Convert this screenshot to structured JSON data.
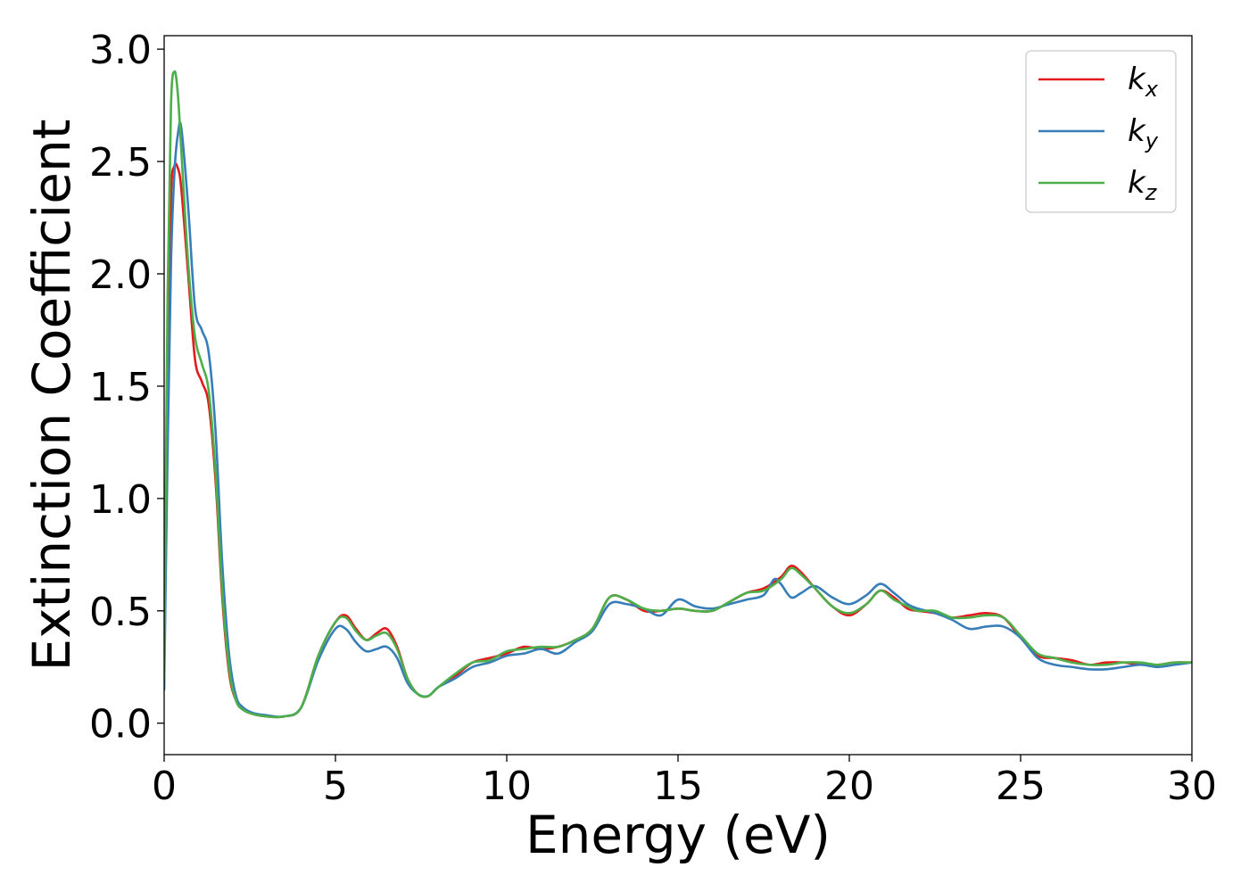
{
  "chart_data": {
    "type": "line",
    "xlabel": "Energy (eV)",
    "ylabel": "Extinction Coefficient",
    "xlim": [
      0,
      30
    ],
    "ylim": [
      -0.14,
      3.06
    ],
    "xticks": [
      "0",
      "5",
      "10",
      "15",
      "20",
      "25",
      "30"
    ],
    "yticks": [
      "0.0",
      "0.5",
      "1.0",
      "1.5",
      "2.0",
      "2.5",
      "3.0"
    ],
    "grid": false,
    "legend_position": "top-right",
    "series": [
      {
        "name": "k",
        "subscript": "x",
        "color": "#e41a1c",
        "x": [
          0,
          0.1,
          0.2,
          0.3,
          0.4,
          0.5,
          0.7,
          0.9,
          1.1,
          1.3,
          1.5,
          1.7,
          1.9,
          2.1,
          2.3,
          2.6,
          3.0,
          3.5,
          4.0,
          4.5,
          5.0,
          5.3,
          5.6,
          5.9,
          6.2,
          6.5,
          6.8,
          7.1,
          7.4,
          7.7,
          8.0,
          8.5,
          9.0,
          9.5,
          10.0,
          10.5,
          11.0,
          11.5,
          12.0,
          12.5,
          13.0,
          13.5,
          14.0,
          14.5,
          15.0,
          15.5,
          16.0,
          16.5,
          17.0,
          17.5,
          18.0,
          18.3,
          18.6,
          19.0,
          19.5,
          20.0,
          20.5,
          20.9,
          21.3,
          21.7,
          22.0,
          22.5,
          23.0,
          23.5,
          24.0,
          24.5,
          25.0,
          25.5,
          26.0,
          26.5,
          27.0,
          27.5,
          28.0,
          28.5,
          29.0,
          29.5,
          30.0
        ],
        "values": [
          0.2,
          1.6,
          2.35,
          2.48,
          2.47,
          2.38,
          2.0,
          1.62,
          1.52,
          1.42,
          1.08,
          0.55,
          0.22,
          0.1,
          0.06,
          0.04,
          0.03,
          0.03,
          0.07,
          0.3,
          0.45,
          0.48,
          0.42,
          0.37,
          0.4,
          0.42,
          0.34,
          0.2,
          0.13,
          0.12,
          0.16,
          0.21,
          0.27,
          0.29,
          0.31,
          0.34,
          0.33,
          0.34,
          0.37,
          0.42,
          0.56,
          0.55,
          0.5,
          0.5,
          0.51,
          0.5,
          0.5,
          0.54,
          0.58,
          0.6,
          0.65,
          0.7,
          0.67,
          0.6,
          0.52,
          0.48,
          0.53,
          0.59,
          0.56,
          0.51,
          0.5,
          0.49,
          0.47,
          0.48,
          0.49,
          0.47,
          0.38,
          0.3,
          0.29,
          0.28,
          0.26,
          0.27,
          0.27,
          0.26,
          0.26,
          0.27,
          0.27
        ]
      },
      {
        "name": "k",
        "subscript": "y",
        "color": "#377eb8",
        "x": [
          0,
          0.1,
          0.2,
          0.3,
          0.4,
          0.5,
          0.7,
          0.9,
          1.1,
          1.3,
          1.5,
          1.7,
          1.9,
          2.1,
          2.3,
          2.6,
          3.0,
          3.5,
          4.0,
          4.5,
          5.0,
          5.3,
          5.6,
          5.9,
          6.2,
          6.5,
          6.8,
          7.1,
          7.4,
          7.7,
          8.0,
          8.5,
          9.0,
          9.5,
          10.0,
          10.5,
          11.0,
          11.5,
          12.0,
          12.5,
          13.0,
          13.5,
          14.0,
          14.5,
          15.0,
          15.5,
          16.0,
          16.5,
          17.0,
          17.5,
          17.8,
          18.0,
          18.3,
          18.6,
          19.0,
          19.5,
          20.0,
          20.5,
          20.9,
          21.3,
          21.7,
          22.0,
          22.5,
          23.0,
          23.5,
          24.0,
          24.5,
          25.0,
          25.5,
          26.0,
          26.5,
          27.0,
          27.5,
          28.0,
          28.5,
          29.0,
          29.5,
          30.0
        ],
        "values": [
          0.15,
          1.2,
          2.05,
          2.45,
          2.62,
          2.65,
          2.3,
          1.85,
          1.75,
          1.65,
          1.3,
          0.7,
          0.3,
          0.12,
          0.07,
          0.045,
          0.035,
          0.03,
          0.07,
          0.28,
          0.42,
          0.42,
          0.36,
          0.32,
          0.33,
          0.34,
          0.29,
          0.18,
          0.13,
          0.12,
          0.16,
          0.2,
          0.25,
          0.27,
          0.3,
          0.31,
          0.33,
          0.31,
          0.36,
          0.41,
          0.53,
          0.53,
          0.51,
          0.48,
          0.55,
          0.52,
          0.51,
          0.53,
          0.55,
          0.57,
          0.64,
          0.62,
          0.56,
          0.58,
          0.61,
          0.56,
          0.53,
          0.57,
          0.62,
          0.58,
          0.53,
          0.51,
          0.49,
          0.46,
          0.42,
          0.43,
          0.43,
          0.38,
          0.29,
          0.26,
          0.25,
          0.24,
          0.24,
          0.25,
          0.26,
          0.25,
          0.26,
          0.27
        ]
      },
      {
        "name": "k",
        "subscript": "z",
        "color": "#4daf4a",
        "x": [
          0,
          0.1,
          0.2,
          0.3,
          0.4,
          0.5,
          0.7,
          0.9,
          1.1,
          1.3,
          1.5,
          1.7,
          1.9,
          2.1,
          2.3,
          2.6,
          3.0,
          3.5,
          4.0,
          4.5,
          5.0,
          5.3,
          5.6,
          5.9,
          6.2,
          6.5,
          6.8,
          7.1,
          7.4,
          7.7,
          8.0,
          8.5,
          9.0,
          9.5,
          10.0,
          10.5,
          11.0,
          11.5,
          12.0,
          12.5,
          13.0,
          13.5,
          14.0,
          14.5,
          15.0,
          15.5,
          16.0,
          16.5,
          17.0,
          17.5,
          18.0,
          18.3,
          18.6,
          19.0,
          19.5,
          20.0,
          20.5,
          20.9,
          21.3,
          21.7,
          22.0,
          22.5,
          23.0,
          23.5,
          24.0,
          24.5,
          25.0,
          25.5,
          26.0,
          26.5,
          27.0,
          27.5,
          28.0,
          28.5,
          29.0,
          29.5,
          30.0
        ],
        "values": [
          0.2,
          1.9,
          2.75,
          2.9,
          2.8,
          2.55,
          2.05,
          1.72,
          1.6,
          1.48,
          1.12,
          0.58,
          0.24,
          0.1,
          0.06,
          0.04,
          0.03,
          0.03,
          0.07,
          0.3,
          0.45,
          0.47,
          0.41,
          0.37,
          0.39,
          0.4,
          0.33,
          0.2,
          0.13,
          0.12,
          0.16,
          0.22,
          0.27,
          0.28,
          0.32,
          0.33,
          0.34,
          0.34,
          0.37,
          0.42,
          0.56,
          0.55,
          0.51,
          0.5,
          0.51,
          0.5,
          0.5,
          0.54,
          0.58,
          0.59,
          0.64,
          0.69,
          0.66,
          0.6,
          0.52,
          0.49,
          0.53,
          0.59,
          0.55,
          0.52,
          0.5,
          0.5,
          0.47,
          0.47,
          0.48,
          0.47,
          0.39,
          0.31,
          0.29,
          0.27,
          0.26,
          0.26,
          0.27,
          0.27,
          0.26,
          0.27,
          0.27
        ]
      }
    ]
  }
}
